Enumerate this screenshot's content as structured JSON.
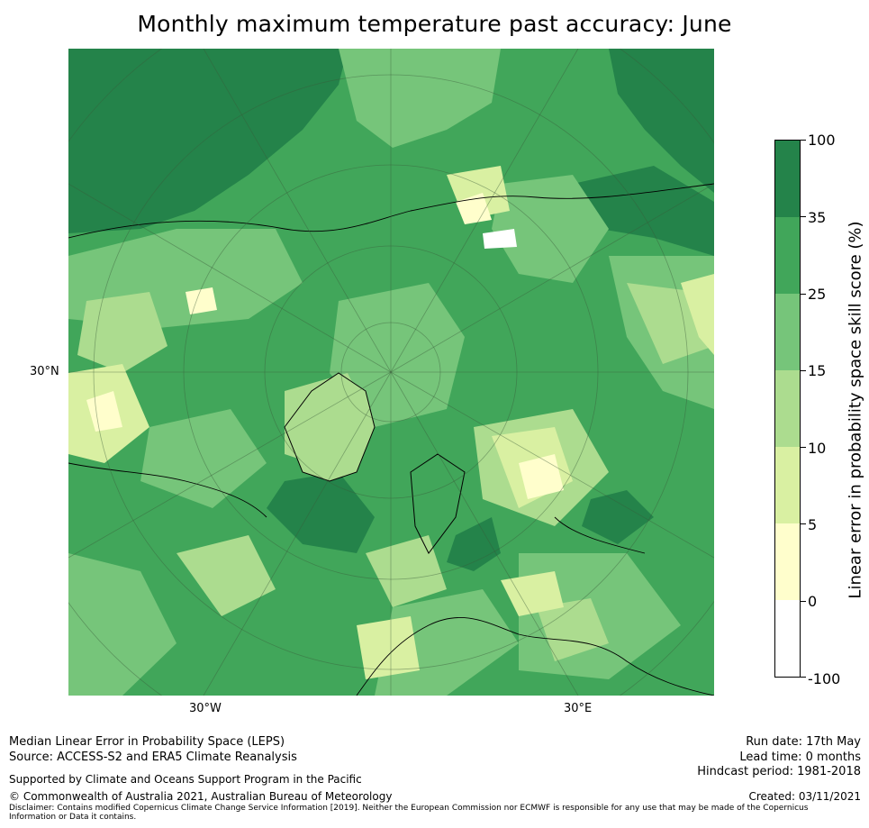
{
  "title": "Monthly maximum temperature past accuracy: June",
  "map": {
    "projection": "north-polar-stereographic",
    "lat_labels": [
      "30°N"
    ],
    "lon_labels": [
      "30°W",
      "30°E"
    ],
    "background_color": "#41a65a"
  },
  "colorbar": {
    "label": "Linear error in probability space skill score (%)",
    "ticks": [
      "100",
      "35",
      "25",
      "15",
      "10",
      "5",
      "0",
      "-100"
    ],
    "bands": [
      {
        "range": "35 to 100",
        "color": "#24834a"
      },
      {
        "range": "25 to 35",
        "color": "#41a65a"
      },
      {
        "range": "15 to 25",
        "color": "#76c57a"
      },
      {
        "range": "10 to 15",
        "color": "#acdc8f"
      },
      {
        "range": "5 to 10",
        "color": "#d9f0a2"
      },
      {
        "range": "0 to 5",
        "color": "#fffecc"
      },
      {
        "range": "-100 to 0",
        "color": "#ffffff"
      }
    ]
  },
  "footer": {
    "method": "Median Linear Error in Probability Space (LEPS)",
    "source": "Source: ACCESS-S2 and ERA5 Climate Reanalysis",
    "support": "Supported by Climate and Oceans Support Program in the Pacific",
    "copyright": "© Commonwealth of Australia 2021, Australian Bureau of Meteorology",
    "disclaimer": "Disclaimer: Contains modified Copernicus Climate Change Service Information [2019]. Neither the European Commission nor ECMWF is responsible for any use that may be made of the Copernicus Information or Data it contains.",
    "run_date": "Run date: 17th May",
    "lead_time": "Lead time: 0 months",
    "hindcast": "Hindcast period: 1981-2018",
    "created": "Created: 03/11/2021"
  }
}
